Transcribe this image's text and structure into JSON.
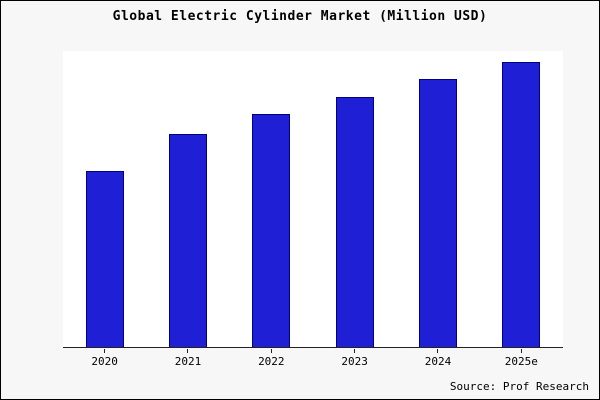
{
  "chart_data": {
    "type": "bar",
    "title": "Global Electric Cylinder Market (Million USD)",
    "categories": [
      "2020",
      "2021",
      "2022",
      "2023",
      "2024",
      "2025e"
    ],
    "values": [
      62,
      75,
      82,
      88,
      94,
      100
    ],
    "xlabel": "",
    "ylabel": "",
    "ylim": [
      0,
      104
    ],
    "grid": false,
    "legend": false,
    "source": "Source: Prof Research",
    "bar_color": "#1f1fd6",
    "bar_border_color": "#000080"
  }
}
